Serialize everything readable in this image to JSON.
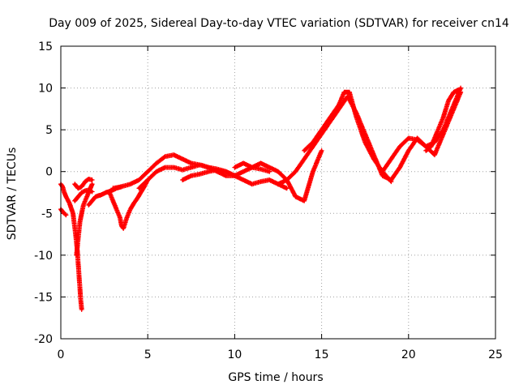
{
  "chart_data": {
    "type": "scatter",
    "title": "Day 009 of 2025, Sidereal Day-to-day VTEC variation (SDTVAR) for receiver cn14",
    "xlabel": "GPS time / hours",
    "ylabel": "SDTVAR / TECUs",
    "xlim": [
      0,
      25
    ],
    "ylim": [
      -20,
      15
    ],
    "xticks": [
      0,
      5,
      10,
      15,
      20,
      25
    ],
    "yticks": [
      -20,
      -15,
      -10,
      -5,
      0,
      5,
      10,
      15
    ],
    "xtick_labels": [
      "0",
      "5",
      "10",
      "15",
      "20",
      "25"
    ],
    "ytick_labels": [
      "-20",
      "-15",
      "-10",
      "-5",
      "0",
      "5",
      "10",
      "15"
    ],
    "grid": true,
    "marker": "+",
    "series": [
      {
        "name": "satellite-track-1",
        "color": "#ff0000",
        "x": [
          0.0,
          0.1,
          0.2,
          0.3,
          0.5,
          0.7,
          0.85,
          0.95,
          1.0,
          1.05,
          1.1,
          1.15,
          1.2
        ],
        "y": [
          -1.5,
          -1.8,
          -2.5,
          -3.0,
          -3.8,
          -5.0,
          -7.5,
          -9.5,
          -11.0,
          -12.5,
          -14.0,
          -15.5,
          -16.5
        ]
      },
      {
        "name": "satellite-track-2",
        "color": "#ff0000",
        "x": [
          0.0,
          0.1,
          0.2,
          0.3
        ],
        "y": [
          -4.5,
          -4.8,
          -5.0,
          -5.2
        ]
      },
      {
        "name": "satellite-track-3",
        "color": "#ff0000",
        "x": [
          0.9,
          1.0,
          1.1,
          1.3,
          1.5,
          1.7,
          1.8
        ],
        "y": [
          -10.0,
          -8.0,
          -6.0,
          -4.0,
          -3.0,
          -2.0,
          -1.5
        ]
      },
      {
        "name": "satellite-track-4",
        "color": "#ff0000",
        "x": [
          0.8,
          1.0,
          1.2,
          1.4,
          1.6,
          1.8
        ],
        "y": [
          -1.5,
          -2.0,
          -1.8,
          -1.2,
          -0.9,
          -1.0
        ]
      },
      {
        "name": "satellite-track-5",
        "color": "#ff0000",
        "x": [
          0.8,
          1.0,
          1.2,
          1.4,
          1.6,
          1.8
        ],
        "y": [
          -3.5,
          -3.0,
          -2.5,
          -2.3,
          -2.2,
          -2.4
        ]
      },
      {
        "name": "satellite-track-6",
        "color": "#ff0000",
        "x": [
          1.6,
          1.8,
          2.0,
          2.3,
          2.6,
          2.9,
          3.2,
          3.5
        ],
        "y": [
          -4.0,
          -3.5,
          -3.0,
          -2.8,
          -2.5,
          -2.3,
          -2.0,
          -1.8
        ]
      },
      {
        "name": "satellite-track-7",
        "color": "#ff0000",
        "x": [
          2.8,
          3.0,
          3.2,
          3.4,
          3.5,
          3.6,
          3.8,
          4.0,
          4.2,
          4.4,
          4.6,
          4.8,
          5.0
        ],
        "y": [
          -2.5,
          -3.5,
          -4.5,
          -5.5,
          -6.5,
          -6.8,
          -5.5,
          -4.5,
          -3.8,
          -3.2,
          -2.5,
          -1.8,
          -1.0
        ]
      },
      {
        "name": "satellite-track-8",
        "color": "#ff0000",
        "x": [
          3.0,
          3.5,
          4.0,
          4.5,
          5.0,
          5.5,
          6.0,
          6.5,
          7.0,
          7.5,
          8.0,
          8.5,
          9.0,
          9.5,
          10.0
        ],
        "y": [
          -2.0,
          -1.8,
          -1.5,
          -1.0,
          0.0,
          1.0,
          1.8,
          2.0,
          1.5,
          1.0,
          0.8,
          0.5,
          0.3,
          0.0,
          -0.5
        ]
      },
      {
        "name": "satellite-track-9",
        "color": "#ff0000",
        "x": [
          4.5,
          5.0,
          5.5,
          6.0,
          6.5,
          7.0,
          7.5,
          8.0,
          8.5,
          9.0,
          9.5,
          10.0,
          10.5,
          11.0,
          11.5,
          12.0
        ],
        "y": [
          -2.0,
          -1.0,
          0.0,
          0.5,
          0.5,
          0.2,
          0.5,
          0.8,
          0.5,
          0.0,
          -0.5,
          -0.5,
          0.0,
          0.5,
          0.3,
          0.0
        ]
      },
      {
        "name": "satellite-track-10",
        "color": "#ff0000",
        "x": [
          7.0,
          7.5,
          8.0,
          8.5,
          9.0,
          9.5,
          10.0,
          10.5,
          11.0,
          11.5,
          12.0,
          12.5,
          13.0
        ],
        "y": [
          -1.0,
          -0.5,
          -0.3,
          0.0,
          0.2,
          0.0,
          -0.5,
          -1.0,
          -1.5,
          -1.2,
          -1.0,
          -1.5,
          -2.0
        ]
      },
      {
        "name": "satellite-track-11",
        "color": "#ff0000",
        "x": [
          10.0,
          10.5,
          11.0,
          11.5,
          12.0,
          12.5,
          13.0,
          13.5,
          14.0,
          14.5,
          15.0
        ],
        "y": [
          0.5,
          1.0,
          0.5,
          1.0,
          0.5,
          0.0,
          -1.0,
          -3.0,
          -3.5,
          0.0,
          2.5
        ]
      },
      {
        "name": "satellite-track-12",
        "color": "#ff0000",
        "x": [
          12.5,
          13.0,
          13.5,
          14.0,
          14.5,
          15.0,
          15.5,
          16.0,
          16.5,
          17.0,
          17.5,
          18.0,
          18.5,
          19.0
        ],
        "y": [
          -1.5,
          -1.0,
          0.0,
          1.5,
          3.0,
          4.5,
          6.0,
          7.5,
          9.0,
          7.0,
          4.5,
          2.0,
          -0.5,
          -1.0
        ]
      },
      {
        "name": "satellite-track-13",
        "color": "#ff0000",
        "x": [
          14.0,
          14.5,
          15.0,
          15.5,
          16.0,
          16.3,
          16.6,
          17.0,
          17.5,
          18.0,
          18.5,
          19.0
        ],
        "y": [
          2.5,
          3.5,
          5.0,
          6.5,
          8.0,
          9.5,
          9.5,
          6.5,
          3.5,
          1.5,
          0.0,
          -1.2
        ]
      },
      {
        "name": "satellite-track-14",
        "color": "#ff0000",
        "x": [
          18.5,
          19.0,
          19.5,
          20.0,
          20.5,
          21.0,
          21.5,
          22.0,
          22.5,
          23.0
        ],
        "y": [
          0.0,
          1.5,
          3.0,
          4.0,
          3.8,
          3.0,
          3.5,
          5.0,
          7.5,
          10.0
        ]
      },
      {
        "name": "satellite-track-15",
        "color": "#ff0000",
        "x": [
          19.0,
          19.5,
          20.0,
          20.5,
          21.0,
          21.5,
          22.0,
          22.5,
          23.0
        ],
        "y": [
          -1.0,
          0.5,
          2.5,
          4.0,
          3.0,
          2.0,
          4.5,
          7.0,
          9.5
        ]
      },
      {
        "name": "satellite-track-16",
        "color": "#ff0000",
        "x": [
          21.0,
          21.3,
          21.6,
          22.0,
          22.3,
          22.6,
          22.9
        ],
        "y": [
          2.5,
          3.0,
          4.5,
          6.5,
          8.5,
          9.5,
          9.8
        ]
      }
    ]
  }
}
